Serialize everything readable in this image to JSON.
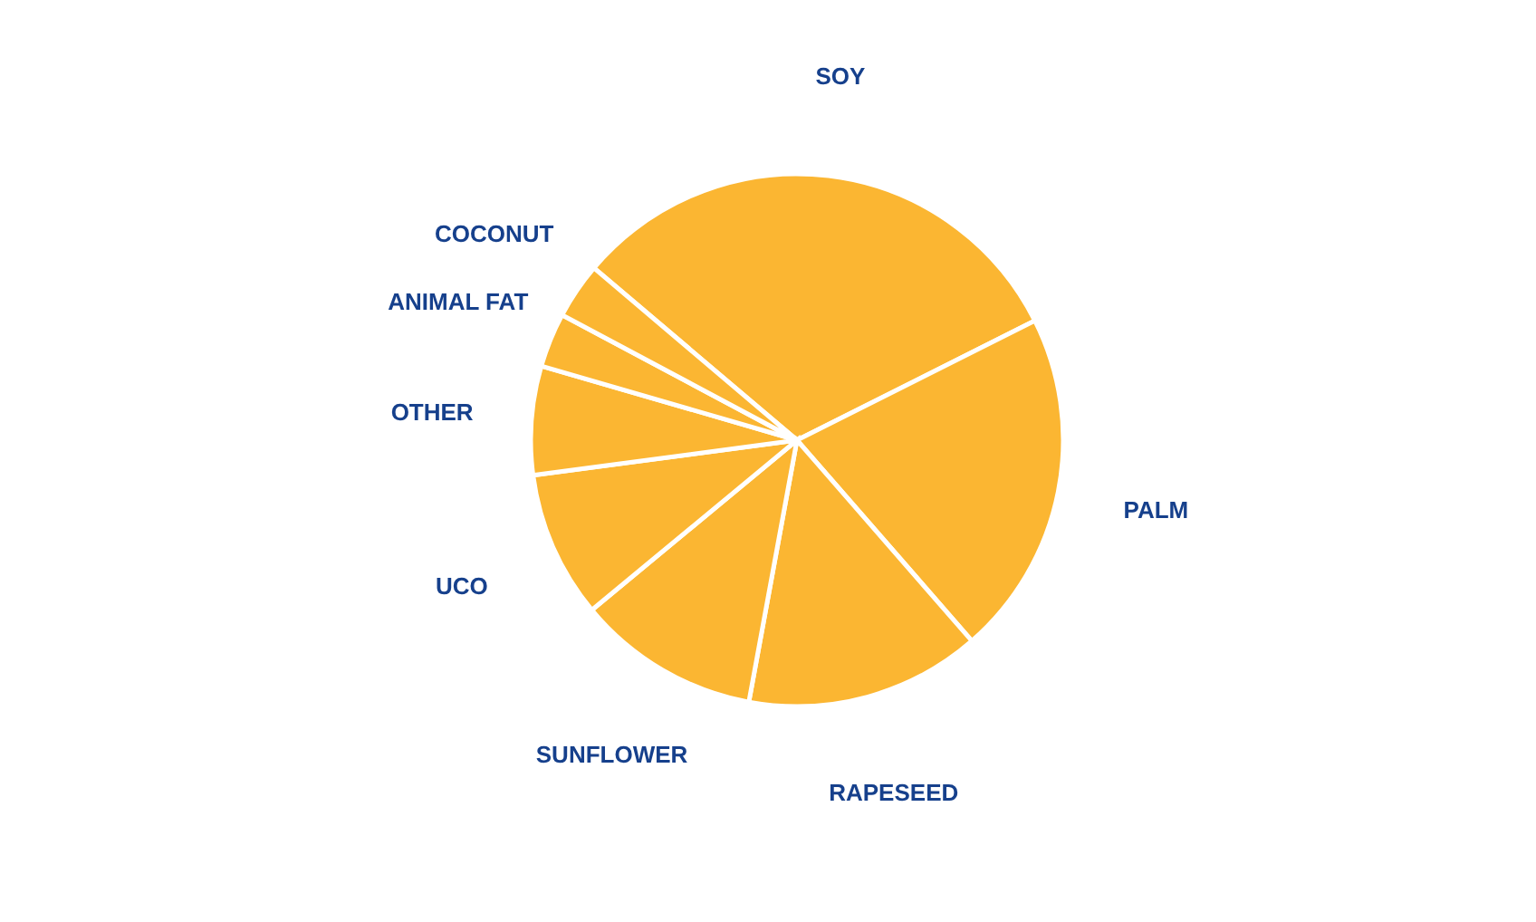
{
  "chart_data": {
    "type": "pie",
    "categories": [
      "SOY",
      "PALM",
      "RAPESEED",
      "SUNFLOWER",
      "UCO",
      "OTHER",
      "ANIMAL FAT",
      "COCONUT"
    ],
    "values": [
      31.4,
      21.0,
      14.3,
      11.1,
      8.9,
      6.6,
      3.3,
      3.4
    ],
    "colors": [
      "#fbb632",
      "#fbb632",
      "#fbb632",
      "#fbb632",
      "#fbb632",
      "#fbb632",
      "#fbb632",
      "#fbb632"
    ]
  }
}
